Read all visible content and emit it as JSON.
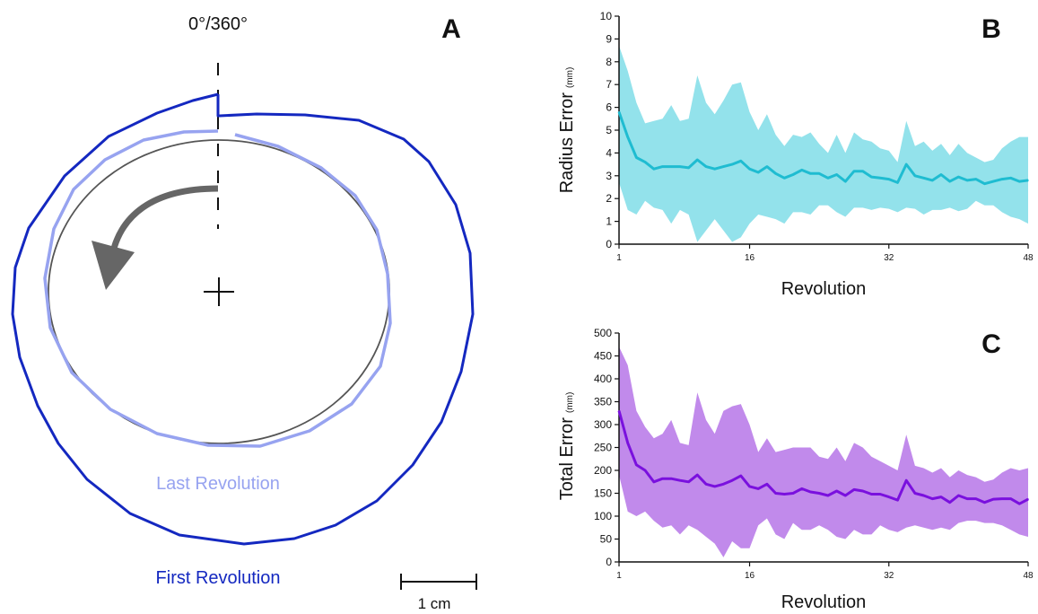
{
  "figure": {
    "panel_a": {
      "label": "A",
      "angle_label": "0°/360°",
      "last_label": "Last Revolution",
      "first_label": "First Revolution",
      "scale_label": "1 cm",
      "colors": {
        "first": "#1428c0",
        "last": "#97a3f0",
        "target": "#555555",
        "arrow": "#666666"
      }
    }
  },
  "chart_data": [
    {
      "type": "line",
      "panel": "B",
      "ylabel": "Radius Error",
      "yunit": "(mm)",
      "xlabel": "Revolution",
      "xlim": [
        1,
        48
      ],
      "ylim": [
        0,
        10
      ],
      "xticks": [
        1,
        16,
        32,
        48
      ],
      "yticks": [
        0,
        1,
        2,
        3,
        4,
        5,
        6,
        7,
        8,
        9,
        10
      ],
      "color": "#1fbcd1",
      "band_color": "#93e2eb",
      "x": [
        1,
        2,
        3,
        4,
        5,
        6,
        7,
        8,
        9,
        10,
        11,
        12,
        13,
        14,
        15,
        16,
        17,
        18,
        19,
        20,
        21,
        22,
        23,
        24,
        25,
        26,
        27,
        28,
        29,
        30,
        31,
        32,
        33,
        34,
        35,
        36,
        37,
        38,
        39,
        40,
        41,
        42,
        43,
        44,
        45,
        46,
        47,
        48
      ],
      "mean": [
        5.8,
        4.7,
        3.8,
        3.6,
        3.3,
        3.4,
        3.4,
        3.4,
        3.35,
        3.7,
        3.4,
        3.3,
        3.4,
        3.5,
        3.65,
        3.3,
        3.15,
        3.4,
        3.1,
        2.9,
        3.05,
        3.25,
        3.1,
        3.1,
        2.9,
        3.05,
        2.75,
        3.2,
        3.2,
        2.95,
        2.9,
        2.85,
        2.7,
        3.5,
        3.0,
        2.9,
        2.8,
        3.05,
        2.75,
        2.95,
        2.8,
        2.85,
        2.65,
        2.75,
        2.85,
        2.9,
        2.75,
        2.8
      ],
      "upper": [
        8.7,
        7.6,
        6.2,
        5.3,
        5.4,
        5.5,
        6.1,
        5.4,
        5.5,
        7.4,
        6.2,
        5.7,
        6.3,
        7.0,
        7.1,
        5.8,
        5.0,
        5.7,
        4.8,
        4.3,
        4.8,
        4.7,
        4.9,
        4.4,
        4.0,
        4.8,
        4.0,
        4.9,
        4.6,
        4.5,
        4.2,
        4.1,
        3.6,
        5.4,
        4.3,
        4.5,
        4.1,
        4.4,
        3.9,
        4.4,
        4.0,
        3.8,
        3.6,
        3.7,
        4.2,
        4.5,
        4.7,
        4.7
      ],
      "lower": [
        2.7,
        1.5,
        1.3,
        1.9,
        1.6,
        1.5,
        0.9,
        1.5,
        1.3,
        0.1,
        0.6,
        1.1,
        0.6,
        0.1,
        0.3,
        0.9,
        1.3,
        1.2,
        1.1,
        0.9,
        1.4,
        1.4,
        1.3,
        1.7,
        1.7,
        1.4,
        1.2,
        1.6,
        1.6,
        1.5,
        1.6,
        1.55,
        1.4,
        1.6,
        1.55,
        1.3,
        1.5,
        1.5,
        1.6,
        1.45,
        1.55,
        1.9,
        1.7,
        1.7,
        1.4,
        1.2,
        1.1,
        0.9
      ]
    },
    {
      "type": "line",
      "panel": "C",
      "ylabel": "Total Error",
      "yunit": "(mm)",
      "xlabel": "Revolution",
      "xlim": [
        1,
        48
      ],
      "ylim": [
        0,
        500
      ],
      "xticks": [
        1,
        16,
        32,
        48
      ],
      "yticks": [
        0,
        50,
        100,
        150,
        200,
        250,
        300,
        350,
        400,
        450,
        500
      ],
      "color": "#7a10de",
      "band_color": "#c18aeb",
      "x": [
        1,
        2,
        3,
        4,
        5,
        6,
        7,
        8,
        9,
        10,
        11,
        12,
        13,
        14,
        15,
        16,
        17,
        18,
        19,
        20,
        21,
        22,
        23,
        24,
        25,
        26,
        27,
        28,
        29,
        30,
        31,
        32,
        33,
        34,
        35,
        36,
        37,
        38,
        39,
        40,
        41,
        42,
        43,
        44,
        45,
        46,
        47,
        48
      ],
      "mean": [
        330,
        260,
        212,
        200,
        175,
        182,
        182,
        178,
        175,
        190,
        170,
        165,
        170,
        178,
        188,
        165,
        160,
        170,
        150,
        148,
        150,
        160,
        153,
        150,
        145,
        155,
        145,
        158,
        155,
        148,
        148,
        142,
        135,
        178,
        150,
        145,
        138,
        142,
        130,
        145,
        138,
        138,
        130,
        137,
        138,
        138,
        127,
        137
      ],
      "upper": [
        470,
        430,
        330,
        295,
        270,
        280,
        310,
        260,
        255,
        370,
        310,
        280,
        330,
        340,
        345,
        300,
        240,
        270,
        240,
        245,
        250,
        250,
        250,
        230,
        225,
        250,
        220,
        260,
        250,
        230,
        220,
        210,
        200,
        278,
        210,
        205,
        195,
        205,
        185,
        200,
        190,
        185,
        175,
        180,
        195,
        205,
        200,
        205
      ],
      "lower": [
        190,
        110,
        100,
        110,
        90,
        75,
        80,
        60,
        80,
        70,
        55,
        40,
        10,
        45,
        30,
        30,
        80,
        95,
        60,
        50,
        85,
        70,
        70,
        80,
        70,
        55,
        50,
        70,
        60,
        60,
        80,
        70,
        65,
        75,
        80,
        75,
        70,
        75,
        70,
        85,
        90,
        90,
        85,
        85,
        80,
        70,
        60,
        55
      ]
    }
  ]
}
